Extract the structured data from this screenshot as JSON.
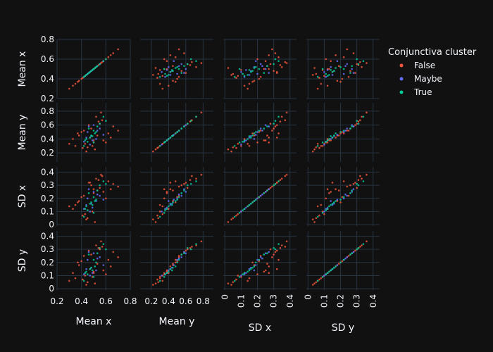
{
  "chart_data": {
    "type": "scatter",
    "title": "",
    "variables": [
      {
        "key": "mean_x",
        "label": "Mean x",
        "range": [
          0.2,
          0.8
        ],
        "ticks": [
          0.2,
          0.4,
          0.6,
          0.8
        ],
        "tick_labels": [
          "0.2",
          "0.4",
          "0.6",
          "0.8"
        ]
      },
      {
        "key": "mean_y",
        "label": "Mean y",
        "range": [
          0.07,
          0.92
        ],
        "ticks": [
          0.2,
          0.4,
          0.6,
          0.8
        ],
        "tick_labels": [
          "0.2",
          "0.4",
          "0.6",
          "0.8"
        ]
      },
      {
        "key": "sd_x",
        "label": "SD x",
        "range": [
          -0.01,
          0.44
        ],
        "ticks": [
          0,
          0.1,
          0.2,
          0.3,
          0.4
        ],
        "tick_labels": [
          "0",
          "0.1",
          "0.2",
          "0.3",
          "0.4"
        ]
      },
      {
        "key": "sd_y",
        "label": "SD y",
        "range": [
          -0.01,
          0.44
        ],
        "ticks": [
          0,
          0.1,
          0.2,
          0.3,
          0.4
        ],
        "tick_labels": [
          "0",
          "0.1",
          "0.2",
          "0.3",
          "0.4"
        ]
      }
    ],
    "legend": {
      "title": "Conjunctiva cluster",
      "placement": "top-right",
      "items": [
        {
          "name": "False",
          "color": "#ef553b"
        },
        {
          "name": "Maybe",
          "color": "#636efa"
        },
        {
          "name": "True",
          "color": "#00cc96"
        }
      ]
    },
    "grid": true,
    "series": [
      {
        "name": "False",
        "color": "#ef553b",
        "points": [
          [
            0.47,
            0.42,
            0.32,
            0.15
          ],
          [
            0.5,
            0.35,
            0.27,
            0.12
          ],
          [
            0.42,
            0.52,
            0.22,
            0.25
          ],
          [
            0.55,
            0.62,
            0.28,
            0.3
          ],
          [
            0.35,
            0.3,
            0.15,
            0.08
          ],
          [
            0.62,
            0.48,
            0.33,
            0.22
          ],
          [
            0.45,
            0.28,
            0.05,
            0.05
          ],
          [
            0.52,
            0.72,
            0.35,
            0.33
          ],
          [
            0.38,
            0.45,
            0.18,
            0.18
          ],
          [
            0.58,
            0.38,
            0.25,
            0.14
          ],
          [
            0.48,
            0.55,
            0.3,
            0.26
          ],
          [
            0.43,
            0.33,
            0.08,
            0.1
          ],
          [
            0.66,
            0.58,
            0.31,
            0.28
          ],
          [
            0.33,
            0.4,
            0.12,
            0.12
          ],
          [
            0.51,
            0.25,
            0.02,
            0.04
          ],
          [
            0.57,
            0.67,
            0.37,
            0.32
          ],
          [
            0.4,
            0.5,
            0.21,
            0.21
          ],
          [
            0.49,
            0.3,
            0.1,
            0.09
          ],
          [
            0.53,
            0.45,
            0.26,
            0.19
          ],
          [
            0.7,
            0.52,
            0.29,
            0.24
          ],
          [
            0.3,
            0.33,
            0.14,
            0.06
          ],
          [
            0.46,
            0.6,
            0.32,
            0.29
          ],
          [
            0.6,
            0.35,
            0.2,
            0.11
          ],
          [
            0.44,
            0.22,
            0.04,
            0.03
          ],
          [
            0.56,
            0.78,
            0.38,
            0.36
          ],
          [
            0.37,
            0.48,
            0.17,
            0.2
          ],
          [
            0.64,
            0.42,
            0.27,
            0.17
          ],
          [
            0.5,
            0.38,
            0.24,
            0.13
          ],
          [
            0.41,
            0.27,
            0.07,
            0.07
          ],
          [
            0.54,
            0.65,
            0.34,
            0.31
          ]
        ]
      },
      {
        "name": "Maybe",
        "color": "#636efa",
        "points": [
          [
            0.48,
            0.44,
            0.16,
            0.16
          ],
          [
            0.52,
            0.4,
            0.18,
            0.14
          ],
          [
            0.45,
            0.5,
            0.2,
            0.22
          ],
          [
            0.55,
            0.55,
            0.22,
            0.24
          ],
          [
            0.42,
            0.36,
            0.12,
            0.11
          ],
          [
            0.5,
            0.6,
            0.25,
            0.27
          ],
          [
            0.47,
            0.32,
            0.1,
            0.1
          ],
          [
            0.58,
            0.46,
            0.19,
            0.18
          ],
          [
            0.44,
            0.42,
            0.15,
            0.15
          ],
          [
            0.53,
            0.52,
            0.23,
            0.23
          ],
          [
            0.49,
            0.38,
            0.13,
            0.12
          ],
          [
            0.46,
            0.58,
            0.27,
            0.28
          ]
        ]
      },
      {
        "name": "True",
        "color": "#00cc96",
        "points": [
          [
            0.48,
            0.45,
            0.17,
            0.16
          ],
          [
            0.44,
            0.4,
            0.14,
            0.13
          ],
          [
            0.52,
            0.5,
            0.19,
            0.2
          ],
          [
            0.5,
            0.35,
            0.09,
            0.09
          ],
          [
            0.46,
            0.55,
            0.24,
            0.26
          ],
          [
            0.55,
            0.62,
            0.3,
            0.31
          ],
          [
            0.42,
            0.3,
            0.06,
            0.06
          ],
          [
            0.58,
            0.72,
            0.33,
            0.34
          ],
          [
            0.47,
            0.42,
            0.16,
            0.15
          ],
          [
            0.51,
            0.48,
            0.18,
            0.17
          ],
          [
            0.45,
            0.36,
            0.11,
            0.11
          ],
          [
            0.53,
            0.58,
            0.26,
            0.27
          ],
          [
            0.49,
            0.44,
            0.15,
            0.14
          ],
          [
            0.6,
            0.66,
            0.31,
            0.3
          ],
          [
            0.43,
            0.38,
            0.12,
            0.12
          ],
          [
            0.5,
            0.52,
            0.21,
            0.22
          ]
        ]
      }
    ]
  }
}
